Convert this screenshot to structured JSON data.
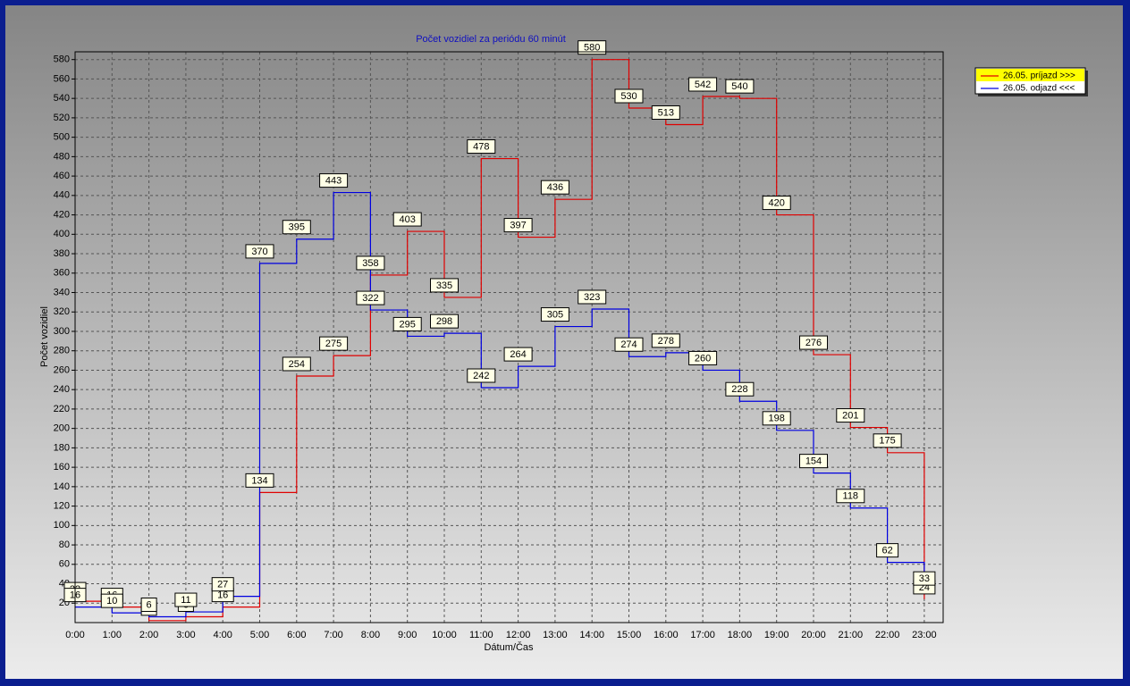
{
  "chart_data": {
    "type": "line",
    "step": "post",
    "title": "Počet vozidiel za periódu 60 minút",
    "x_label": "Dátum/Čas",
    "y_label": "Počet vozidiel",
    "categories": [
      "0:00",
      "1:00",
      "2:00",
      "3:00",
      "4:00",
      "5:00",
      "6:00",
      "7:00",
      "8:00",
      "9:00",
      "10:00",
      "11:00",
      "12:00",
      "13:00",
      "14:00",
      "15:00",
      "16:00",
      "17:00",
      "18:00",
      "19:00",
      "20:00",
      "21:00",
      "22:00",
      "23:00"
    ],
    "series": [
      {
        "name": "26.05.  príjazd >>>",
        "color": "#e00000",
        "values": [
          22,
          16,
          2,
          6,
          16,
          134,
          254,
          275,
          358,
          403,
          335,
          478,
          397,
          436,
          580,
          530,
          513,
          542,
          540,
          420,
          276,
          201,
          175,
          24
        ]
      },
      {
        "name": "26.05.  odjazd <<<",
        "color": "#0000e0",
        "values": [
          16,
          10,
          6,
          11,
          27,
          370,
          395,
          443,
          322,
          295,
          298,
          242,
          264,
          305,
          323,
          274,
          278,
          260,
          228,
          198,
          154,
          118,
          62,
          33
        ]
      }
    ],
    "ylim": [
      0,
      588
    ],
    "yticks": [
      20,
      40,
      60,
      80,
      100,
      120,
      140,
      160,
      180,
      200,
      220,
      240,
      260,
      280,
      300,
      320,
      340,
      360,
      380,
      400,
      420,
      440,
      460,
      480,
      500,
      520,
      540,
      560,
      580
    ],
    "grid": true,
    "legend": "right"
  }
}
